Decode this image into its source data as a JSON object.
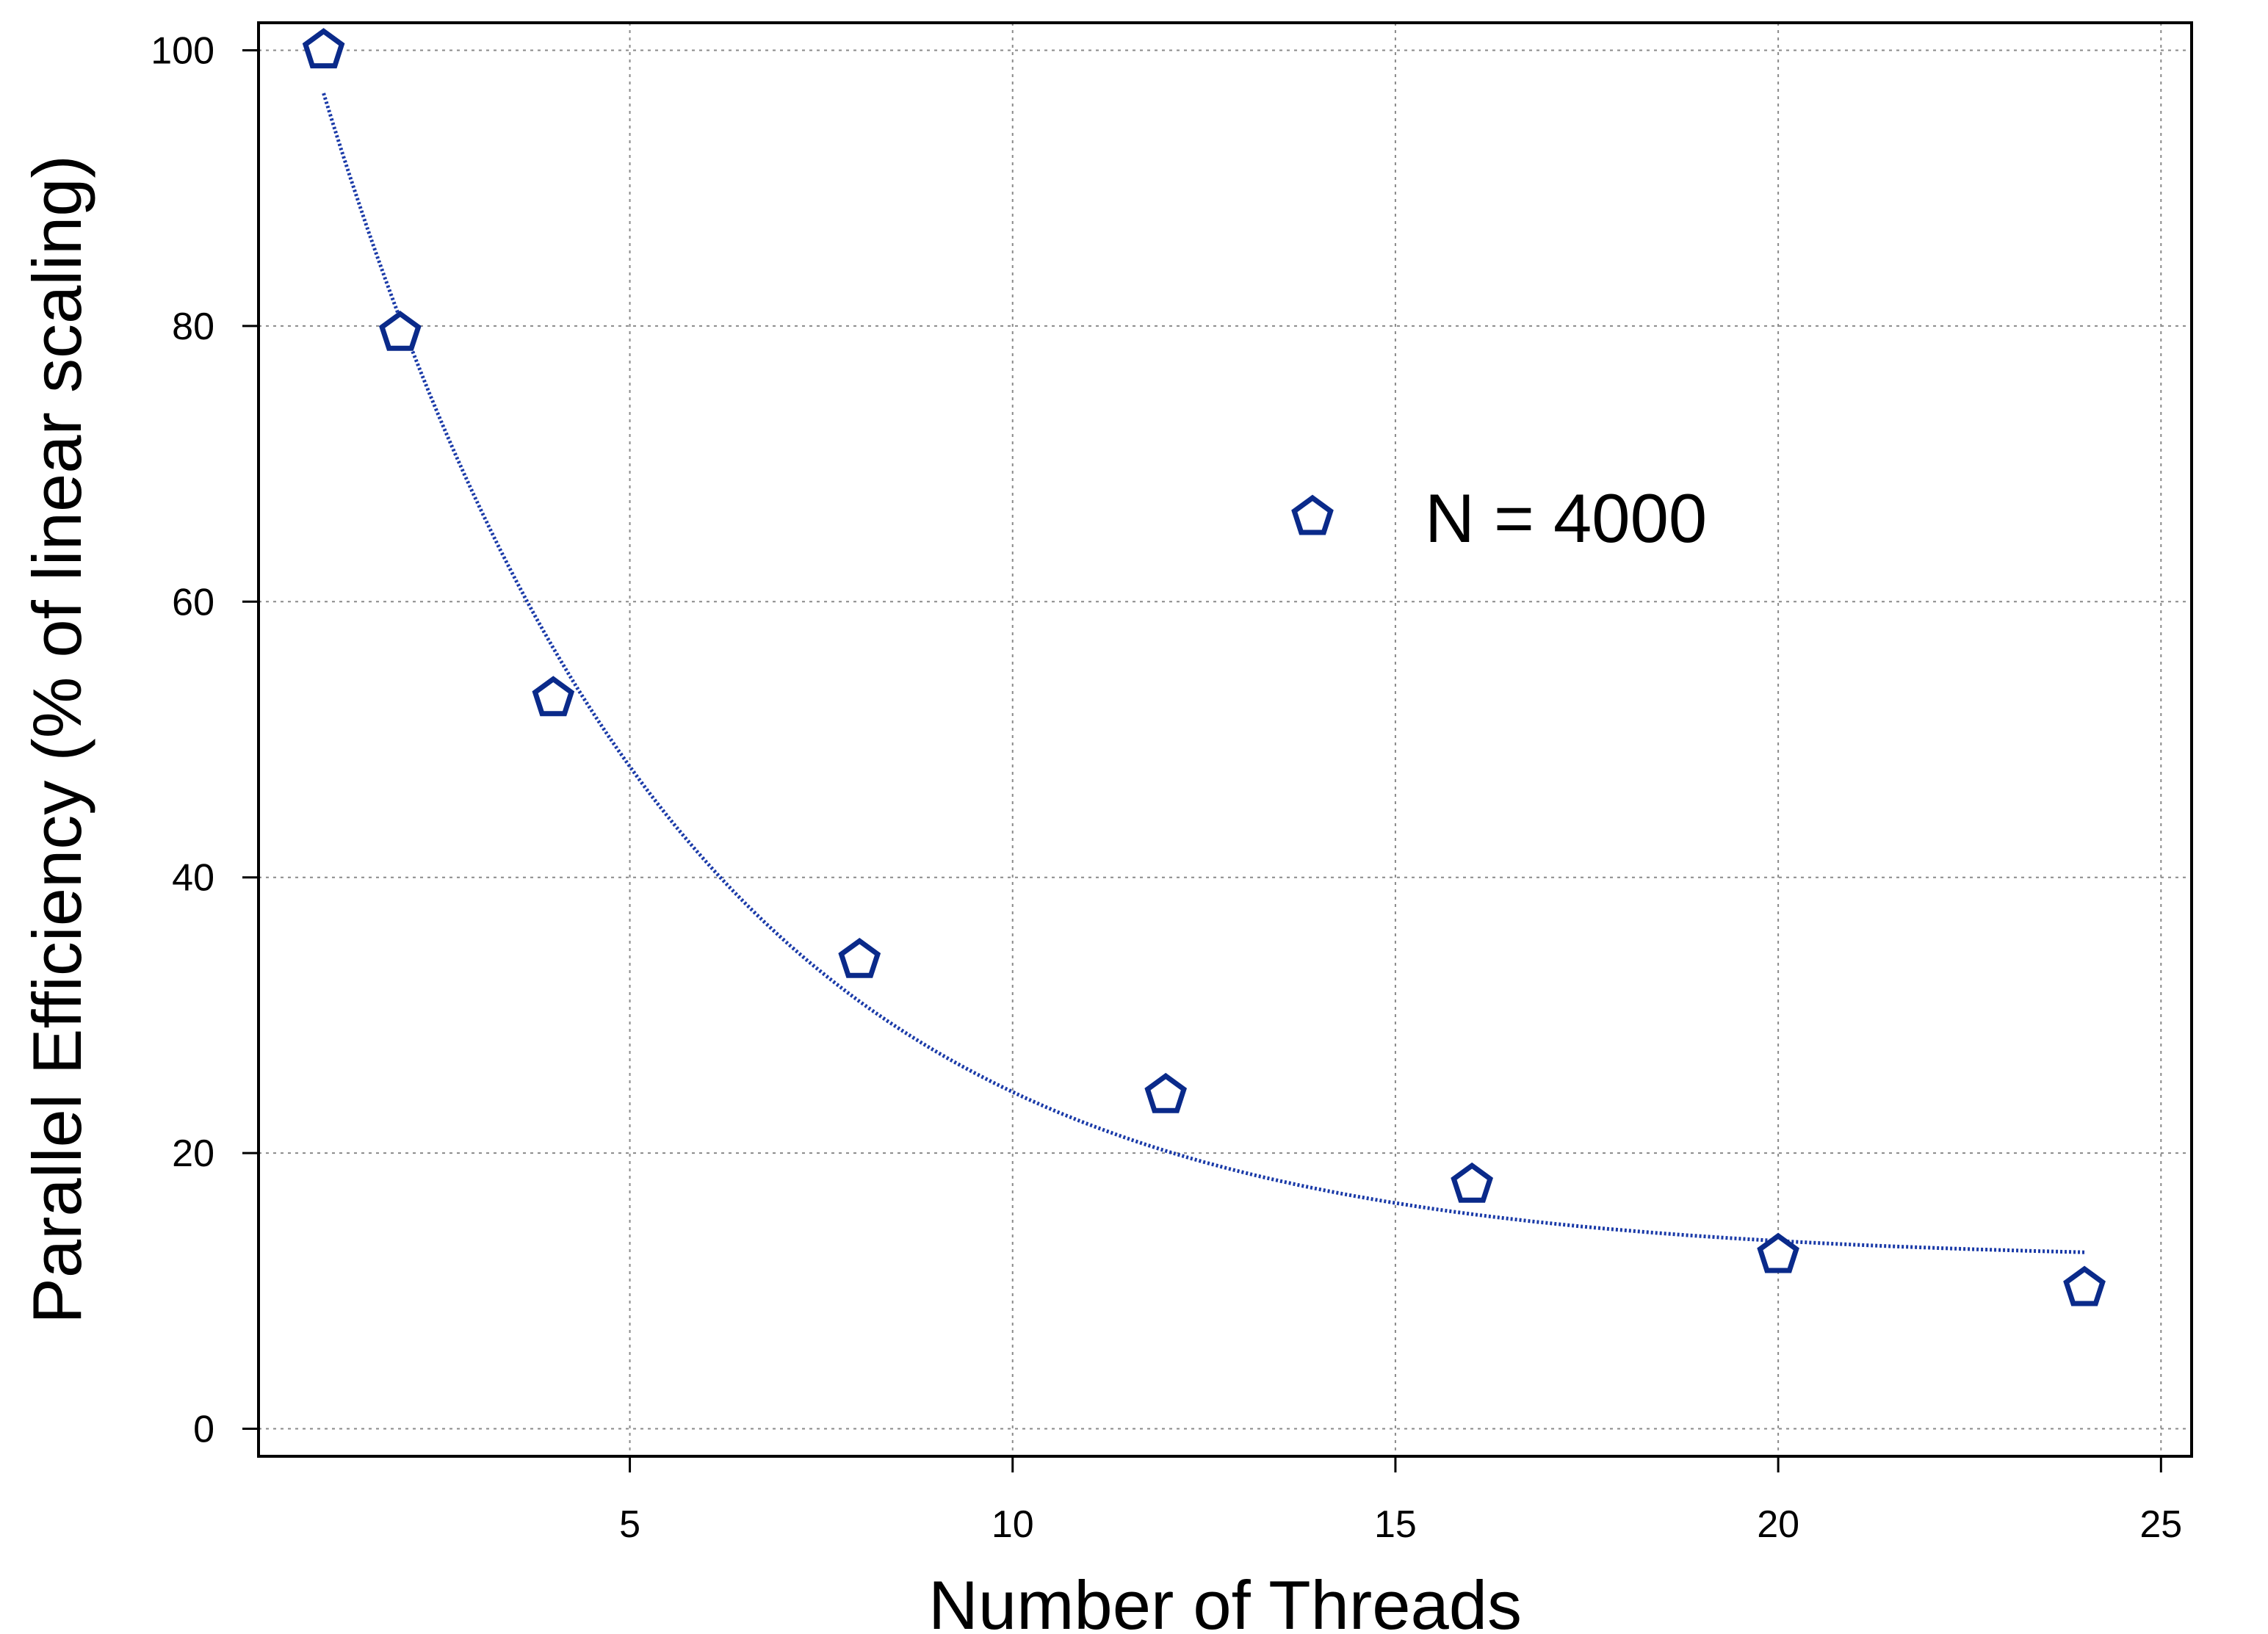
{
  "chart_data": {
    "type": "scatter",
    "title": "",
    "xlabel": "Number of Threads",
    "ylabel": "Parallel Efficiency (% of linear scaling)",
    "xlim": [
      0.15,
      25.4
    ],
    "ylim": [
      -2,
      102
    ],
    "x_ticks": [
      5,
      10,
      15,
      20,
      25
    ],
    "y_ticks": [
      0,
      20,
      40,
      60,
      80,
      100
    ],
    "grid": true,
    "legend_position": "upper-right",
    "series": [
      {
        "name": "N = 4000",
        "marker": "pentagon-open",
        "color": "#0a2a8a",
        "points": [
          {
            "x": 1,
            "y": 100
          },
          {
            "x": 2,
            "y": 79.5
          },
          {
            "x": 4,
            "y": 53
          },
          {
            "x": 8,
            "y": 34
          },
          {
            "x": 12,
            "y": 24.2
          },
          {
            "x": 16,
            "y": 17.7
          },
          {
            "x": 20,
            "y": 12.6
          },
          {
            "x": 24,
            "y": 10.2
          }
        ]
      }
    ],
    "fit_line": {
      "style": "dotted",
      "color": "#1a3aa8",
      "x_range": [
        1,
        24
      ],
      "model": "exponential-decay",
      "params": {
        "amplitude": 105,
        "rate": 0.215,
        "offset": 12.2
      }
    }
  }
}
